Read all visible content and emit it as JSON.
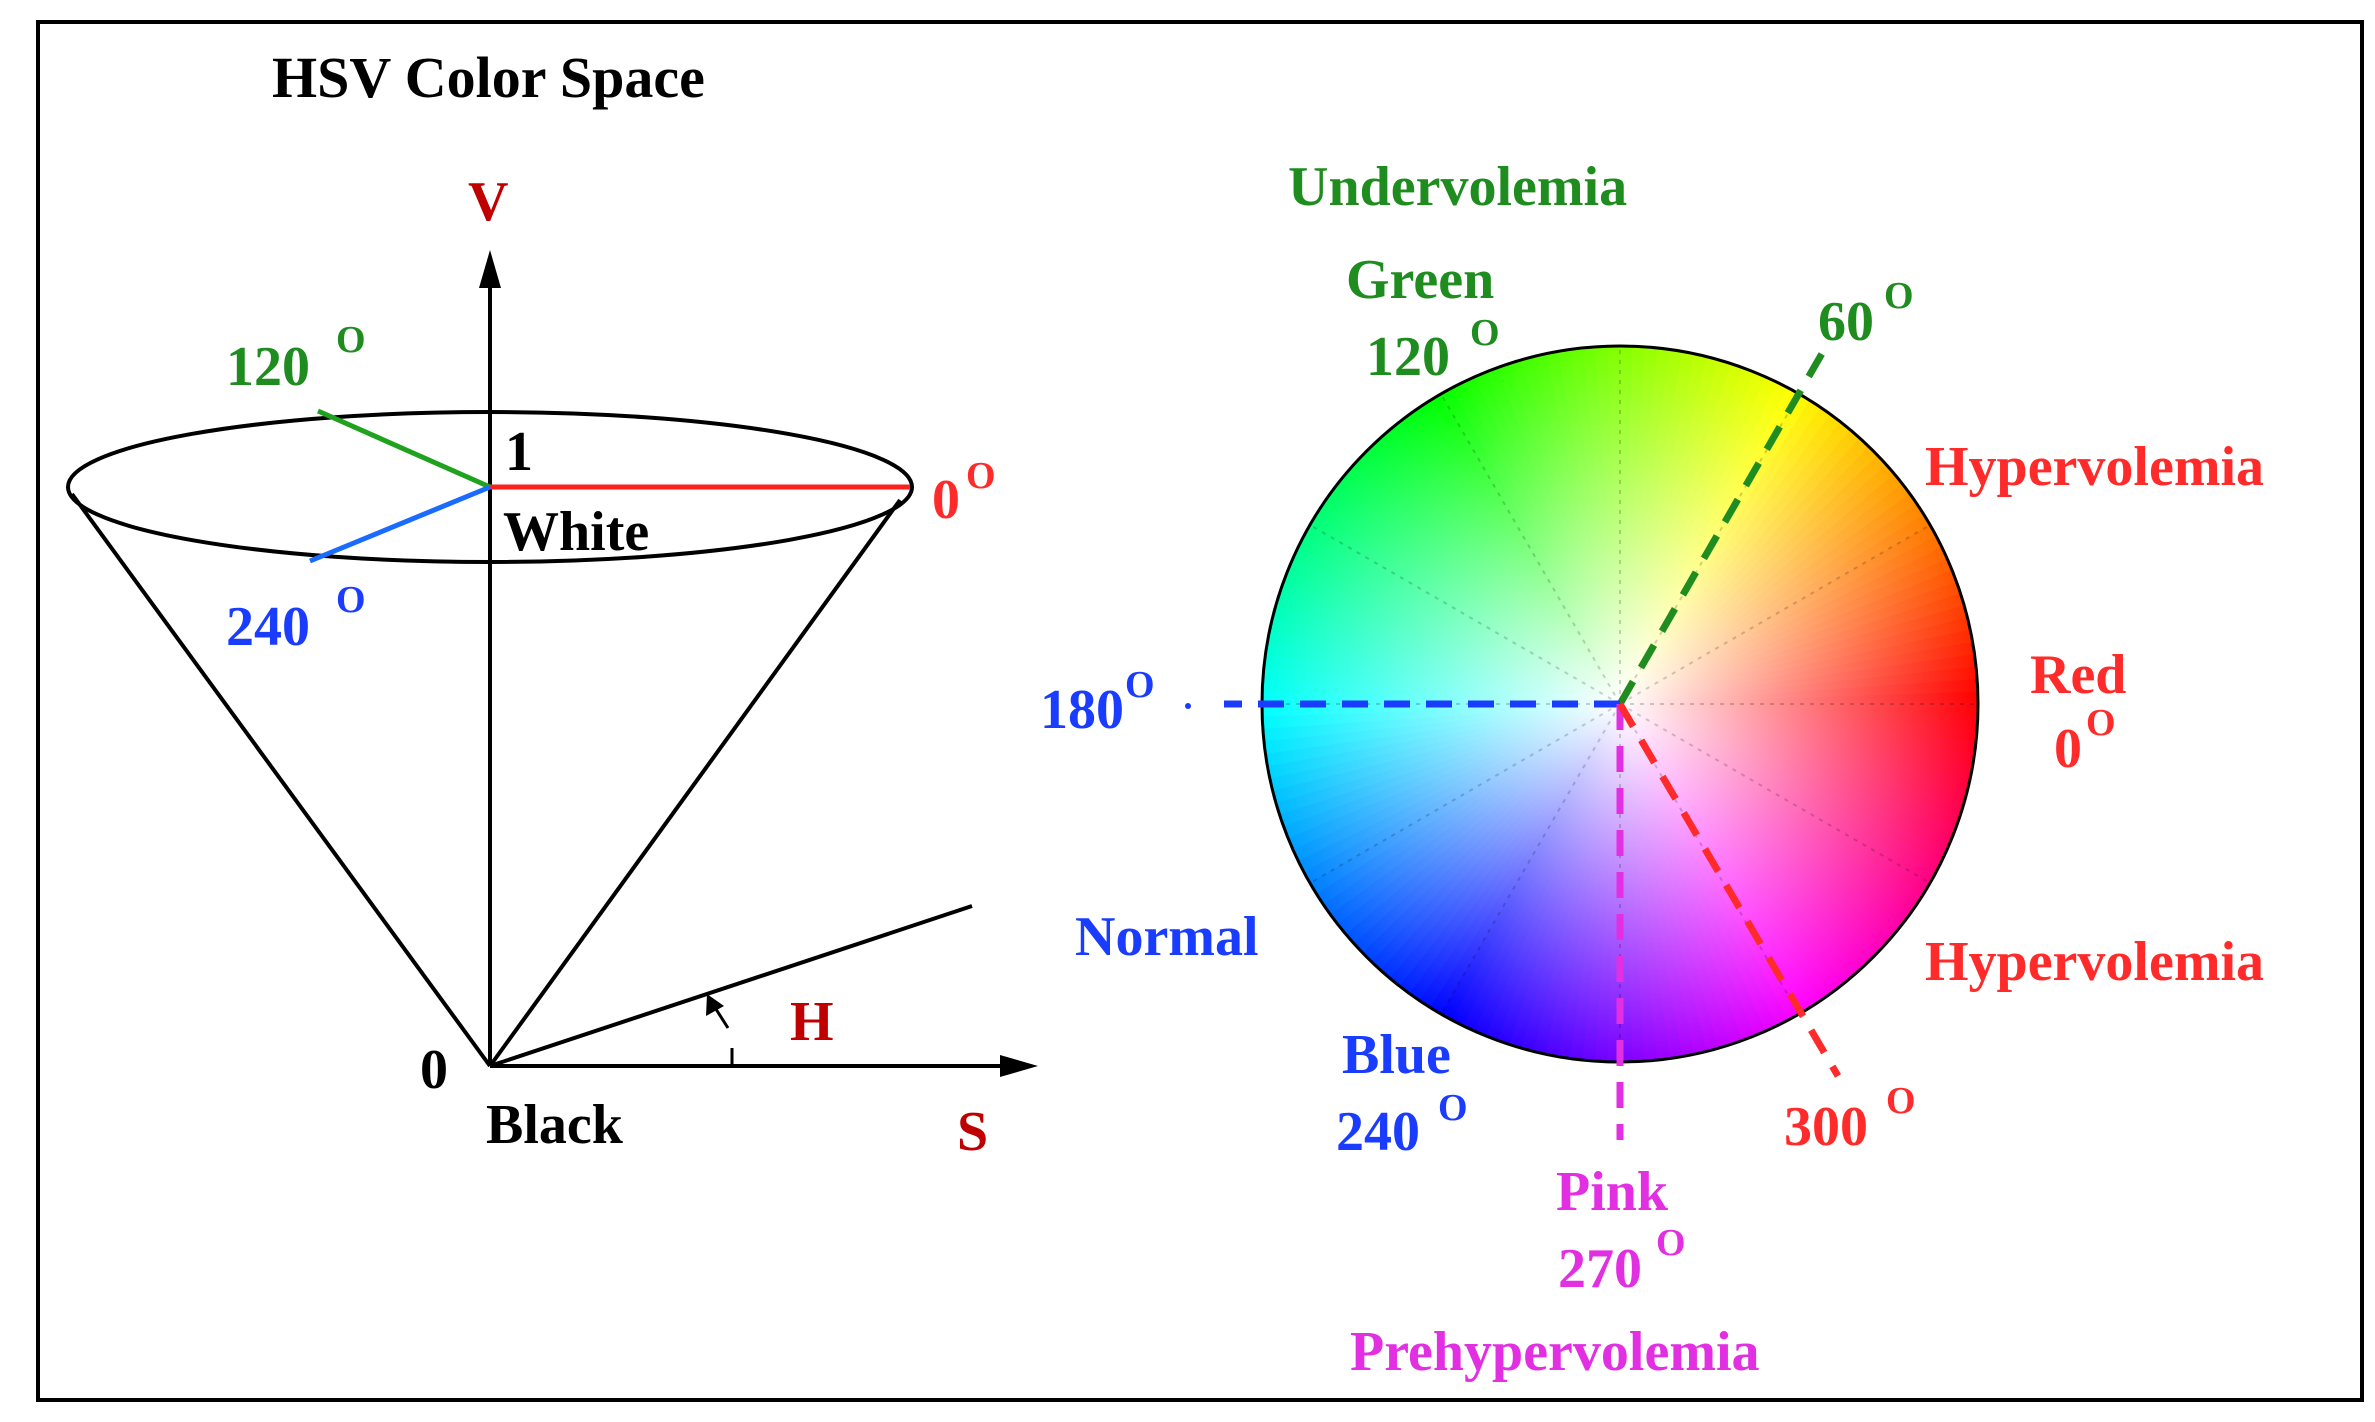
{
  "title": "HSV Color Space",
  "colors": {
    "green": "#1f8c1f",
    "red_axis": "#c00000",
    "red_label": "#ff2a2a",
    "blue": "#1a3cff",
    "pink": "#e22fe2",
    "black": "#000000"
  },
  "cone": {
    "axis_v": "V",
    "axis_s": "S",
    "hue_label": "H",
    "top_value": "1",
    "top_name": "White",
    "bottom_value": "0",
    "bottom_name": "Black",
    "deg_120": "120",
    "deg_0": "0",
    "deg_240": "240",
    "deg_symbol": "O"
  },
  "wheel": {
    "undervolemia": "Undervolemia",
    "green_name": "Green",
    "green_deg": "120",
    "deg_60": "60",
    "hypervolemia_top": "Hypervolemia",
    "red_name": "Red",
    "red_deg": "0",
    "deg_180": "180",
    "normal": "Normal",
    "hypervolemia_bottom": "Hypervolemia",
    "blue_name": "Blue",
    "blue_deg": "240",
    "deg_300": "300",
    "pink_name": "Pink",
    "pink_deg": "270",
    "prehypervolemia": "Prehypervolemia",
    "deg_symbol": "O"
  }
}
